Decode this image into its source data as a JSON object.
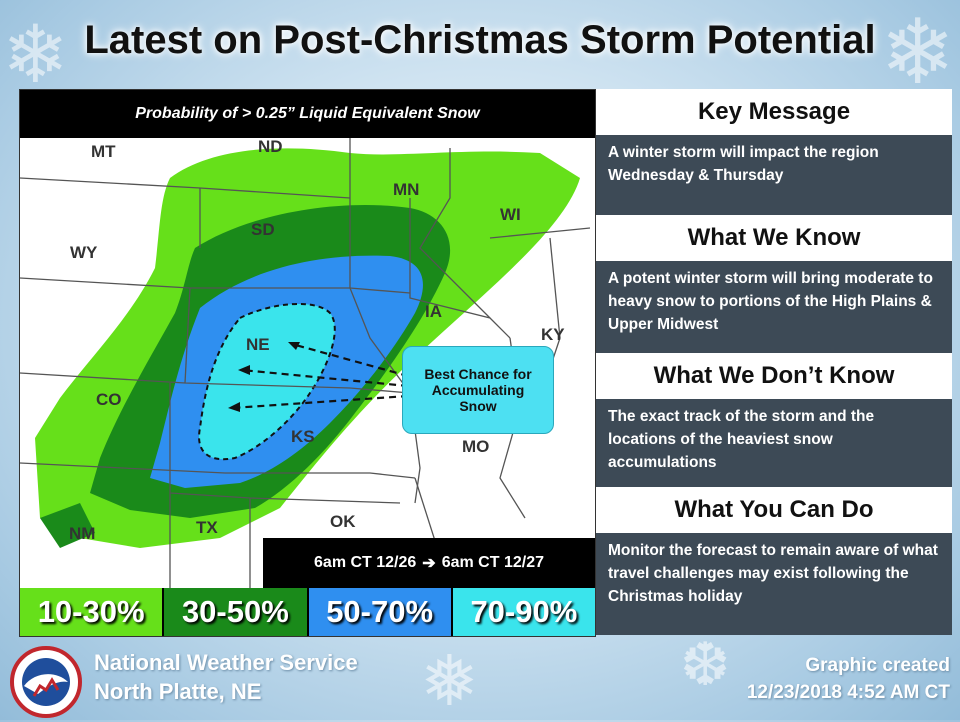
{
  "title": "Latest on Post-Christmas Storm Potential",
  "map": {
    "header": "Probability of > 0.25” Liquid Equivalent Snow",
    "states": [
      {
        "abbr": "MT"
      },
      {
        "abbr": "ND"
      },
      {
        "abbr": "MN"
      },
      {
        "abbr": "WI"
      },
      {
        "abbr": "WY"
      },
      {
        "abbr": "SD"
      },
      {
        "abbr": "IA"
      },
      {
        "abbr": "KY"
      },
      {
        "abbr": "NE"
      },
      {
        "abbr": "CO"
      },
      {
        "abbr": "KS"
      },
      {
        "abbr": "MO"
      },
      {
        "abbr": "NM"
      },
      {
        "abbr": "TX"
      },
      {
        "abbr": "OK"
      }
    ],
    "callout": {
      "line1": "Best Chance for",
      "line2": "Accumulating",
      "line3": "Snow"
    },
    "valid_period": {
      "start": "6am CT 12/26",
      "arrow": "➔",
      "end": "6am CT 12/27"
    },
    "legend": [
      {
        "label": "10-30%",
        "color": "#66e01a"
      },
      {
        "label": "30-50%",
        "color": "#1a8a1a"
      },
      {
        "label": "50-70%",
        "color": "#2f8ff0"
      },
      {
        "label": "70-90%",
        "color": "#3ae4ec"
      }
    ]
  },
  "messages": [
    {
      "heading": "Key Message",
      "body": "A winter storm will impact the region Wednesday & Thursday"
    },
    {
      "heading": "What We Know",
      "body": "A potent winter storm will bring moderate to heavy snow to portions of the High Plains & Upper Midwest"
    },
    {
      "heading": "What We Don’t Know",
      "body": "The exact track of the storm and the locations of the heaviest snow accumulations"
    },
    {
      "heading": "What You Can Do",
      "body": "Monitor the forecast to remain aware of what travel challenges may exist following the Christmas holiday"
    }
  ],
  "footer": {
    "office_line1": "National Weather Service",
    "office_line2": "North Platte, NE",
    "created_label": "Graphic created",
    "created_time": "12/23/2018 4:52 AM CT"
  }
}
